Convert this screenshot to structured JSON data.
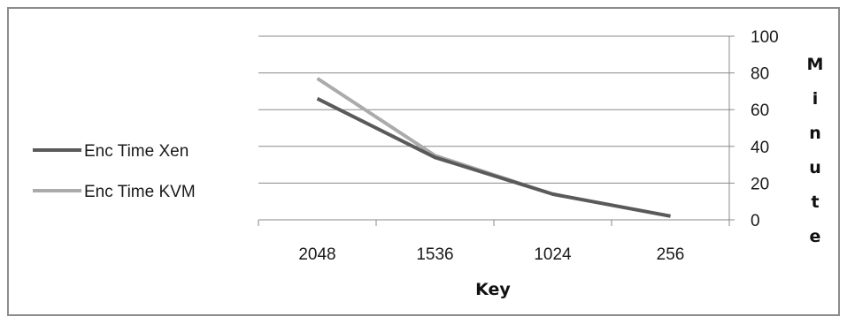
{
  "chart_data": {
    "type": "line",
    "categories": [
      "2048",
      "1536",
      "1024",
      "256"
    ],
    "series": [
      {
        "name": "Enc Time Xen",
        "values": [
          66,
          34,
          14,
          2
        ],
        "color": "#5a5a5a"
      },
      {
        "name": "Enc Time KVM",
        "values": [
          77,
          35,
          14,
          2
        ],
        "color": "#ababab"
      }
    ],
    "xlabel": "Key",
    "ylabel": "Minute",
    "ylim": [
      0,
      100
    ],
    "yticks": [
      "0",
      "20",
      "40",
      "60",
      "80",
      "100"
    ],
    "grid": true,
    "y_axis_side": "right",
    "legend_position": "left"
  }
}
